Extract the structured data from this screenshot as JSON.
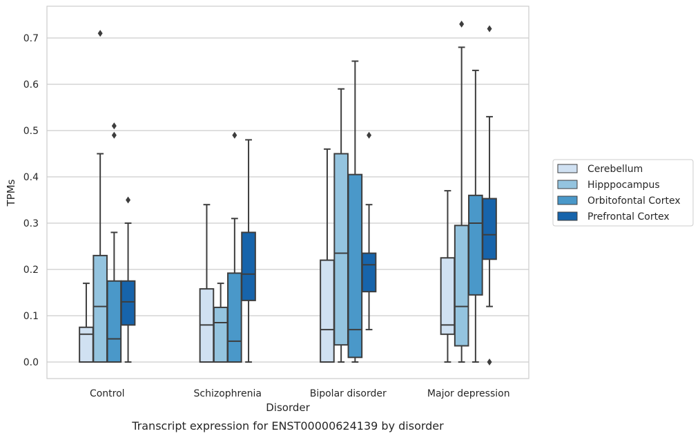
{
  "chart_data": {
    "type": "boxplot",
    "caption": "Transcript expression for ENST00000624139 by disorder",
    "xlabel": "Disorder",
    "ylabel": "TPMs",
    "ylim": [
      -0.035,
      0.775
    ],
    "yticks": [
      "0.0",
      "0.1",
      "0.2",
      "0.3",
      "0.4",
      "0.5",
      "0.6",
      "0.7"
    ],
    "ytick_values": [
      0,
      0.1,
      0.2,
      0.3,
      0.4,
      0.5,
      0.6,
      0.7
    ],
    "grid": true,
    "legend_position": "right",
    "categories": [
      "Control",
      "Schizophrenia",
      "Bipolar disorder",
      "Major depression"
    ],
    "series": [
      {
        "name": "Cerebellum",
        "color": "#d0e1f2",
        "boxes": [
          {
            "whislo": 0,
            "q1": 0,
            "med": 0.06,
            "q3": 0.075,
            "whishi": 0.17,
            "fliers": []
          },
          {
            "whislo": 0,
            "q1": 0,
            "med": 0.08,
            "q3": 0.158,
            "whishi": 0.34,
            "fliers": []
          },
          {
            "whislo": 0,
            "q1": 0,
            "med": 0.07,
            "q3": 0.22,
            "whishi": 0.46,
            "fliers": []
          },
          {
            "whislo": 0,
            "q1": 0.06,
            "med": 0.08,
            "q3": 0.225,
            "whishi": 0.37,
            "fliers": []
          }
        ]
      },
      {
        "name": "Hipppocampus",
        "color": "#94c4df",
        "boxes": [
          {
            "whislo": 0,
            "q1": 0,
            "med": 0.12,
            "q3": 0.23,
            "whishi": 0.45,
            "fliers": [
              0.71
            ]
          },
          {
            "whislo": 0,
            "q1": 0,
            "med": 0.085,
            "q3": 0.118,
            "whishi": 0.17,
            "fliers": []
          },
          {
            "whislo": 0,
            "q1": 0.037,
            "med": 0.235,
            "q3": 0.45,
            "whishi": 0.59,
            "fliers": []
          },
          {
            "whislo": 0,
            "q1": 0.035,
            "med": 0.12,
            "q3": 0.295,
            "whishi": 0.68,
            "fliers": [
              0.73
            ]
          }
        ]
      },
      {
        "name": "Orbitofontal Cortex",
        "color": "#4a98c9",
        "boxes": [
          {
            "whislo": 0,
            "q1": 0,
            "med": 0.05,
            "q3": 0.175,
            "whishi": 0.28,
            "fliers": [
              0.49,
              0.51
            ]
          },
          {
            "whislo": 0,
            "q1": 0,
            "med": 0.045,
            "q3": 0.192,
            "whishi": 0.31,
            "fliers": [
              0.49
            ]
          },
          {
            "whislo": 0,
            "q1": 0.01,
            "med": 0.07,
            "q3": 0.405,
            "whishi": 0.65,
            "fliers": []
          },
          {
            "whislo": 0,
            "q1": 0.145,
            "med": 0.3,
            "q3": 0.36,
            "whishi": 0.63,
            "fliers": []
          }
        ]
      },
      {
        "name": "Prefrontal Cortex",
        "color": "#1764ab",
        "boxes": [
          {
            "whislo": 0,
            "q1": 0.08,
            "med": 0.13,
            "q3": 0.175,
            "whishi": 0.3,
            "fliers": [
              0.35
            ]
          },
          {
            "whislo": 0,
            "q1": 0.133,
            "med": 0.19,
            "q3": 0.28,
            "whishi": 0.48,
            "fliers": []
          },
          {
            "whislo": 0.07,
            "q1": 0.152,
            "med": 0.21,
            "q3": 0.235,
            "whishi": 0.34,
            "fliers": [
              0.49
            ]
          },
          {
            "whislo": 0.12,
            "q1": 0.222,
            "med": 0.275,
            "q3": 0.353,
            "whishi": 0.53,
            "fliers": [
              0,
              0.72
            ]
          }
        ]
      }
    ]
  }
}
